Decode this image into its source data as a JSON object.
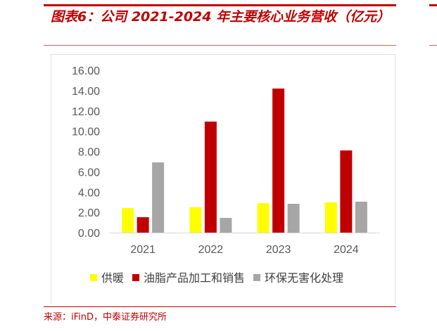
{
  "title": "图表6：公司 2021-2024 年主要核心业务营收（亿元）",
  "source": "来源：iFinD，中泰证券研究所",
  "chart_data": {
    "type": "bar",
    "title": "",
    "xlabel": "",
    "ylabel": "",
    "categories": [
      "2021",
      "2022",
      "2023",
      "2024"
    ],
    "ylim": [
      0,
      16
    ],
    "yticks": [
      "0.00",
      "2.00",
      "4.00",
      "6.00",
      "8.00",
      "10.00",
      "12.00",
      "14.00",
      "16.00"
    ],
    "grid": false,
    "legend": "bottom",
    "series": [
      {
        "name": "供暖",
        "color": "#ffff00",
        "values": [
          2.42,
          2.5,
          2.9,
          2.98
        ]
      },
      {
        "name": "油脂产品加工和销售",
        "color": "#c00000",
        "values": [
          1.52,
          10.94,
          14.2,
          8.1
        ]
      },
      {
        "name": "环保无害化处理",
        "color": "#a6a6a6",
        "values": [
          6.92,
          1.45,
          2.84,
          3.05
        ]
      }
    ]
  }
}
